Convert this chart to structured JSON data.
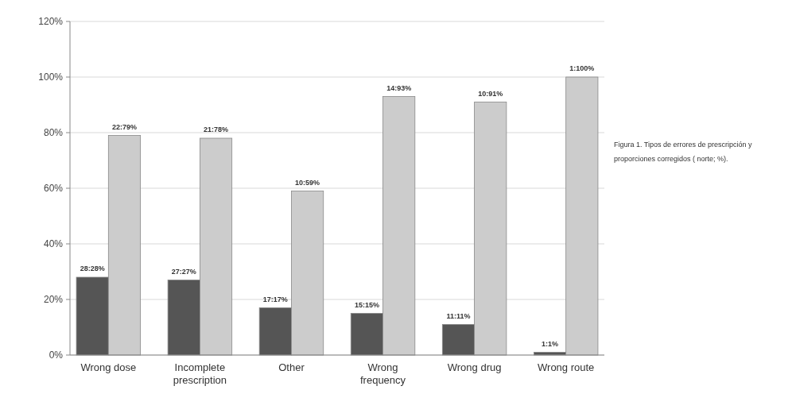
{
  "chart_data": {
    "type": "bar",
    "categories": [
      "Wrong dose",
      "Incomplete prescription",
      "Other",
      "Wrong frequency",
      "Wrong drug",
      "Wrong route"
    ],
    "series": [
      {
        "color": "#555555",
        "values": [
          28,
          27,
          17,
          15,
          11,
          1
        ],
        "value_labels": [
          "28:28%",
          "27:27%",
          "17:17%",
          "15:15%",
          "11:11%",
          "1:1%"
        ]
      },
      {
        "color": "#cccccc",
        "values": [
          79,
          78,
          59,
          93,
          91,
          100
        ],
        "value_labels": [
          "22:79%",
          "21:78%",
          "10:59%",
          "14:93%",
          "10:91%",
          "1:100%"
        ]
      }
    ],
    "ylim": [
      0,
      120
    ],
    "yticks": [
      {
        "value": 0,
        "label": "0%"
      },
      {
        "value": 20,
        "label": "20%"
      },
      {
        "value": 40,
        "label": "40%"
      },
      {
        "value": 60,
        "label": "60%"
      },
      {
        "value": 80,
        "label": "80%"
      },
      {
        "value": 100,
        "label": "100%"
      },
      {
        "value": 120,
        "label": "120%"
      }
    ],
    "grid": "y",
    "annotations": [
      "Figura 1. Tipos de errores de prescripción y proporciones corregidos ( norte; %)."
    ]
  }
}
